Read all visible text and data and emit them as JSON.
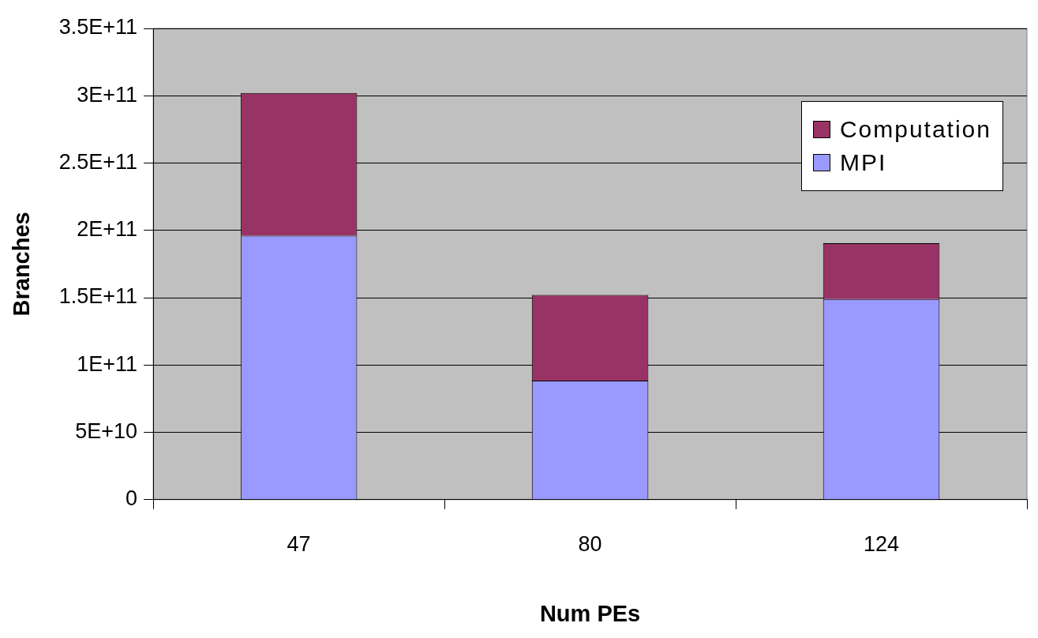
{
  "chart_data": {
    "type": "bar",
    "stacked": true,
    "xlabel": "Num PEs",
    "ylabel": "Branches",
    "categories": [
      "47",
      "80",
      "124"
    ],
    "series": [
      {
        "name": "MPI",
        "color": "#9999ff",
        "values": [
          196000000000.0,
          88500000000.0,
          149000000000.0
        ]
      },
      {
        "name": "Computation",
        "color": "#993366",
        "values": [
          106000000000.0,
          63500000000.0,
          41500000000.0
        ]
      }
    ],
    "ylim": [
      0,
      350000000000.0
    ],
    "yticks": [
      0,
      {
        "value": 50000000000.0,
        "label": "5E+10"
      },
      {
        "value": 100000000000.0,
        "label": "1E+11"
      },
      {
        "value": 150000000000.0,
        "label": "1.5E+11"
      },
      {
        "value": 200000000000.0,
        "label": "2E+11"
      },
      {
        "value": 250000000000.0,
        "label": "2.5E+11"
      },
      {
        "value": 300000000000.0,
        "label": "3E+11"
      },
      {
        "value": 350000000000.0,
        "label": "3.5E+11"
      }
    ],
    "grid": "y",
    "legend": "top right"
  }
}
